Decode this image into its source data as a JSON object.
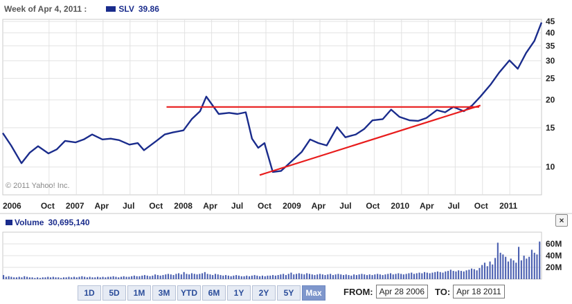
{
  "header": {
    "week_label": "Week of Apr 4, 2011 :",
    "symbol": "SLV",
    "price": "39.86",
    "series_color": "#1a2c8c"
  },
  "copyright": "© 2011 Yahoo! Inc.",
  "volume_header": {
    "label": "Volume",
    "value": "30,695,140"
  },
  "close_label": "×",
  "ranges": [
    {
      "label": "1D",
      "active": false
    },
    {
      "label": "5D",
      "active": false
    },
    {
      "label": "1M",
      "active": false
    },
    {
      "label": "3M",
      "active": false
    },
    {
      "label": "YTD",
      "active": false
    },
    {
      "label": "6M",
      "active": false
    },
    {
      "label": "1Y",
      "active": false
    },
    {
      "label": "2Y",
      "active": false
    },
    {
      "label": "5Y",
      "active": false
    },
    {
      "label": "Max",
      "active": true
    }
  ],
  "date_range": {
    "from_label": "FROM:",
    "from_value": "Apr 28 2006",
    "to_label": "TO:",
    "to_value": "Apr 18 2011"
  },
  "chart_data": [
    {
      "type": "line",
      "series": [
        {
          "name": "SLV",
          "color": "#1a2c8c"
        }
      ],
      "x": [
        "2006-04-28",
        "2006-05-26",
        "2006-06-30",
        "2006-07-28",
        "2006-08-25",
        "2006-09-29",
        "2006-10-27",
        "2006-11-24",
        "2006-12-29",
        "2007-01-26",
        "2007-02-23",
        "2007-03-30",
        "2007-04-27",
        "2007-05-25",
        "2007-06-29",
        "2007-07-27",
        "2007-08-17",
        "2007-09-28",
        "2007-10-26",
        "2007-11-23",
        "2007-12-28",
        "2008-01-25",
        "2008-02-22",
        "2008-03-14",
        "2008-04-25",
        "2008-05-30",
        "2008-06-27",
        "2008-07-25",
        "2008-08-15",
        "2008-09-05",
        "2008-09-26",
        "2008-10-24",
        "2008-11-21",
        "2008-12-26",
        "2009-01-30",
        "2009-02-27",
        "2009-03-27",
        "2009-04-24",
        "2009-05-29",
        "2009-06-26",
        "2009-07-31",
        "2009-08-28",
        "2009-09-25",
        "2009-10-30",
        "2009-11-27",
        "2009-12-25",
        "2010-01-29",
        "2010-02-26",
        "2010-03-26",
        "2010-04-30",
        "2010-05-28",
        "2010-06-25",
        "2010-07-30",
        "2010-08-27",
        "2010-09-24",
        "2010-10-29",
        "2010-11-26",
        "2010-12-31",
        "2011-01-28",
        "2011-02-25",
        "2011-03-25",
        "2011-04-18"
      ],
      "y": [
        14.2,
        12.5,
        10.4,
        11.6,
        12.4,
        11.5,
        12.0,
        13.1,
        12.9,
        13.3,
        14.0,
        13.3,
        13.4,
        13.2,
        12.6,
        12.8,
        11.9,
        13.1,
        14.0,
        14.3,
        14.6,
        16.4,
        17.8,
        20.7,
        17.3,
        17.5,
        17.3,
        17.6,
        13.4,
        12.2,
        12.8,
        9.5,
        9.6,
        10.6,
        11.7,
        13.3,
        12.8,
        12.5,
        15.1,
        13.6,
        14.0,
        14.8,
        16.2,
        16.4,
        18.1,
        16.8,
        16.2,
        16.1,
        16.6,
        18.0,
        17.6,
        18.6,
        17.8,
        18.9,
        20.7,
        23.5,
        26.5,
        30.1,
        27.6,
        32.5,
        36.8,
        44.5
      ],
      "xlabel": "",
      "ylabel": "",
      "y_scale": "log",
      "ylim": [
        7.5,
        46
      ],
      "x_tick_labels": [
        "2006",
        "Oct",
        "2007",
        "Apr",
        "Jul",
        "Oct",
        "2008",
        "Apr",
        "Jul",
        "Oct",
        "2009",
        "Apr",
        "Jul",
        "Oct",
        "2010",
        "Apr",
        "Jul",
        "Oct",
        "2011"
      ],
      "y_ticks": [
        10,
        15,
        20,
        25,
        30,
        35,
        40,
        45
      ],
      "trendlines": [
        {
          "color": "#e81c1c",
          "start": [
            "2007-11-01",
            18.6
          ],
          "end": [
            "2010-09-20",
            18.6
          ]
        },
        {
          "color": "#e81c1c",
          "start": [
            "2008-09-10",
            9.2
          ],
          "end": [
            "2010-09-24",
            18.9
          ]
        }
      ],
      "grid": true
    },
    {
      "type": "bar",
      "series": [
        {
          "name": "Volume",
          "color": "#1a2c8c"
        }
      ],
      "y_ticks": [
        "20M",
        "40M",
        "60M"
      ],
      "ylim": [
        0,
        80
      ],
      "values_unit": "millions",
      "values": [
        7,
        4,
        5,
        4,
        3,
        3,
        4,
        3,
        5,
        4,
        3,
        3,
        2,
        3,
        2,
        3,
        3,
        4,
        3,
        4,
        3,
        3,
        2,
        3,
        3,
        4,
        3,
        4,
        3,
        4,
        5,
        4,
        3,
        4,
        3,
        3,
        4,
        3,
        4,
        3,
        4,
        4,
        5,
        4,
        3,
        4,
        5,
        4,
        4,
        5,
        6,
        5,
        5,
        6,
        7,
        6,
        5,
        6,
        8,
        7,
        6,
        7,
        8,
        9,
        8,
        7,
        9,
        10,
        8,
        12,
        9,
        8,
        10,
        9,
        8,
        9,
        10,
        12,
        9,
        8,
        7,
        9,
        8,
        7,
        6,
        7,
        6,
        5,
        6,
        7,
        6,
        5,
        5,
        6,
        5,
        6,
        7,
        6,
        5,
        6,
        5,
        6,
        6,
        7,
        6,
        7,
        8,
        9,
        7,
        9,
        11,
        8,
        9,
        10,
        9,
        8,
        10,
        9,
        8,
        7,
        8,
        9,
        8,
        7,
        8,
        9,
        7,
        8,
        9,
        8,
        7,
        8,
        7,
        6,
        8,
        7,
        8,
        9,
        8,
        7,
        8,
        7,
        8,
        9,
        8,
        7,
        8,
        9,
        10,
        8,
        9,
        10,
        9,
        8,
        9,
        10,
        11,
        9,
        10,
        11,
        10,
        12,
        11,
        10,
        11,
        12,
        13,
        12,
        11,
        13,
        14,
        16,
        14,
        13,
        15,
        14,
        13,
        15,
        16,
        18,
        17,
        15,
        19,
        24,
        28,
        22,
        30,
        25,
        36,
        62,
        45,
        42,
        38,
        30,
        35,
        32,
        28,
        55,
        32,
        40,
        35,
        38,
        50,
        45,
        42,
        64
      ]
    }
  ]
}
